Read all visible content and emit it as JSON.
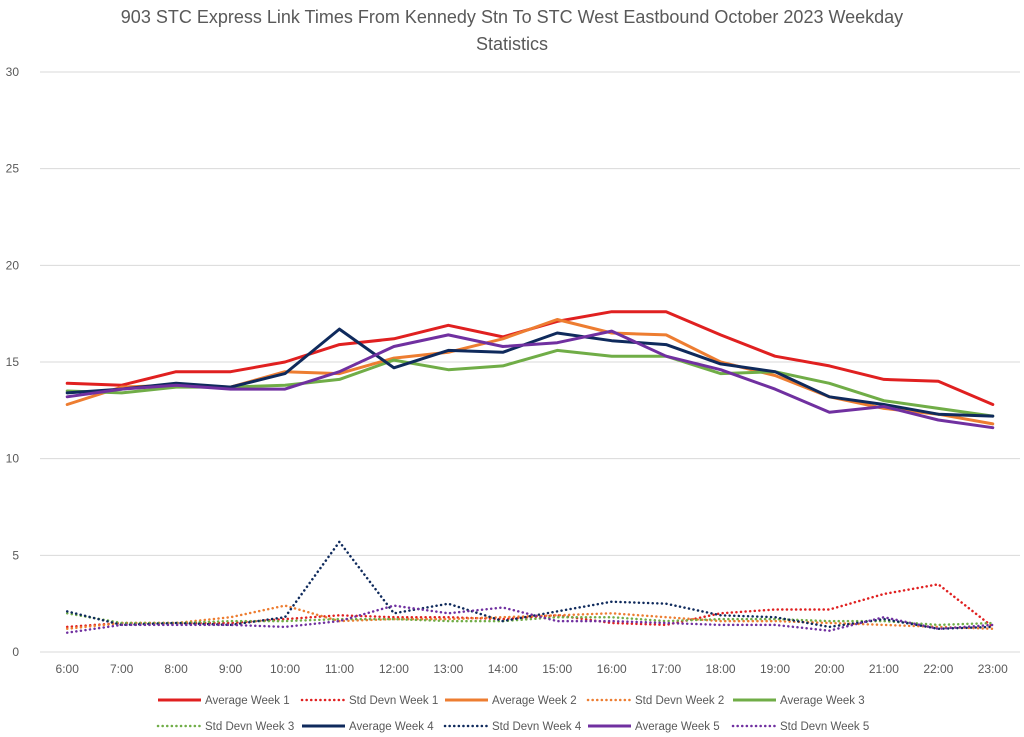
{
  "chart_data": {
    "type": "line",
    "title_line1": "903 STC Express Link Times From Kennedy Stn To STC West Eastbound October 2023 Weekday",
    "title_line2": "Statistics",
    "xlabel": "",
    "ylabel": "",
    "ylim": [
      0,
      30
    ],
    "yticks": [
      "0",
      "5",
      "10",
      "15",
      "20",
      "25",
      "30"
    ],
    "categories": [
      "6:00",
      "7:00",
      "8:00",
      "9:00",
      "10:00",
      "11:00",
      "12:00",
      "13:00",
      "14:00",
      "15:00",
      "16:00",
      "17:00",
      "18:00",
      "19:00",
      "20:00",
      "21:00",
      "22:00",
      "23:00"
    ],
    "grid": true,
    "legend_position": "bottom",
    "series": [
      {
        "name": "Average Week 1",
        "color": "#e02020",
        "style": "solid",
        "values": [
          13.9,
          13.8,
          14.5,
          14.5,
          15.0,
          15.9,
          16.2,
          16.9,
          16.3,
          17.1,
          17.6,
          17.6,
          16.4,
          15.3,
          14.8,
          14.1,
          14.0,
          12.8
        ]
      },
      {
        "name": "Std Devn Week 1",
        "color": "#e02020",
        "style": "dotted",
        "values": [
          1.3,
          1.5,
          1.5,
          1.5,
          1.7,
          1.9,
          1.8,
          1.8,
          1.7,
          1.9,
          1.5,
          1.4,
          2.0,
          2.2,
          2.2,
          3.0,
          3.5,
          1.3
        ]
      },
      {
        "name": "Average Week 2",
        "color": "#ed7d31",
        "style": "solid",
        "values": [
          12.8,
          13.7,
          13.8,
          13.7,
          14.5,
          14.4,
          15.2,
          15.5,
          16.2,
          17.2,
          16.5,
          16.4,
          15.0,
          14.3,
          13.2,
          12.6,
          12.3,
          11.8
        ]
      },
      {
        "name": "Std Devn Week 2",
        "color": "#ed7d31",
        "style": "dotted",
        "values": [
          1.2,
          1.5,
          1.5,
          1.8,
          2.4,
          1.6,
          1.7,
          1.7,
          1.8,
          1.9,
          2.0,
          1.8,
          1.6,
          1.6,
          1.5,
          1.4,
          1.3,
          1.2
        ]
      },
      {
        "name": "Average Week 3",
        "color": "#70ad47",
        "style": "solid",
        "values": [
          13.5,
          13.4,
          13.7,
          13.7,
          13.8,
          14.1,
          15.1,
          14.6,
          14.8,
          15.6,
          15.3,
          15.3,
          14.4,
          14.5,
          13.9,
          13.0,
          12.6,
          12.2
        ]
      },
      {
        "name": "Std Devn Week 3",
        "color": "#70ad47",
        "style": "dotted",
        "values": [
          2.0,
          1.5,
          1.5,
          1.6,
          1.6,
          1.7,
          1.7,
          1.6,
          1.6,
          1.8,
          1.8,
          1.6,
          1.7,
          1.7,
          1.6,
          1.6,
          1.4,
          1.5
        ]
      },
      {
        "name": "Average Week 4",
        "color": "#0f2a5c",
        "style": "solid",
        "values": [
          13.4,
          13.6,
          13.9,
          13.7,
          14.4,
          16.7,
          14.7,
          15.6,
          15.5,
          16.5,
          16.1,
          15.9,
          14.9,
          14.5,
          13.2,
          12.8,
          12.3,
          12.2
        ]
      },
      {
        "name": "Std Devn Week 4",
        "color": "#0f2a5c",
        "style": "dotted",
        "values": [
          2.1,
          1.4,
          1.5,
          1.4,
          1.8,
          5.7,
          2.0,
          2.5,
          1.6,
          2.1,
          2.6,
          2.5,
          1.9,
          1.8,
          1.3,
          1.7,
          1.2,
          1.3
        ]
      },
      {
        "name": "Average Week 5",
        "color": "#7030a0",
        "style": "solid",
        "values": [
          13.2,
          13.6,
          13.8,
          13.6,
          13.6,
          14.5,
          15.8,
          16.4,
          15.8,
          16.0,
          16.6,
          15.3,
          14.6,
          13.6,
          12.4,
          12.7,
          12.0,
          11.6
        ]
      },
      {
        "name": "Std Devn Week 5",
        "color": "#7030a0",
        "style": "dotted",
        "values": [
          1.0,
          1.4,
          1.4,
          1.4,
          1.3,
          1.6,
          2.4,
          2.0,
          2.3,
          1.6,
          1.6,
          1.5,
          1.4,
          1.4,
          1.1,
          1.8,
          1.2,
          1.4
        ]
      }
    ]
  }
}
